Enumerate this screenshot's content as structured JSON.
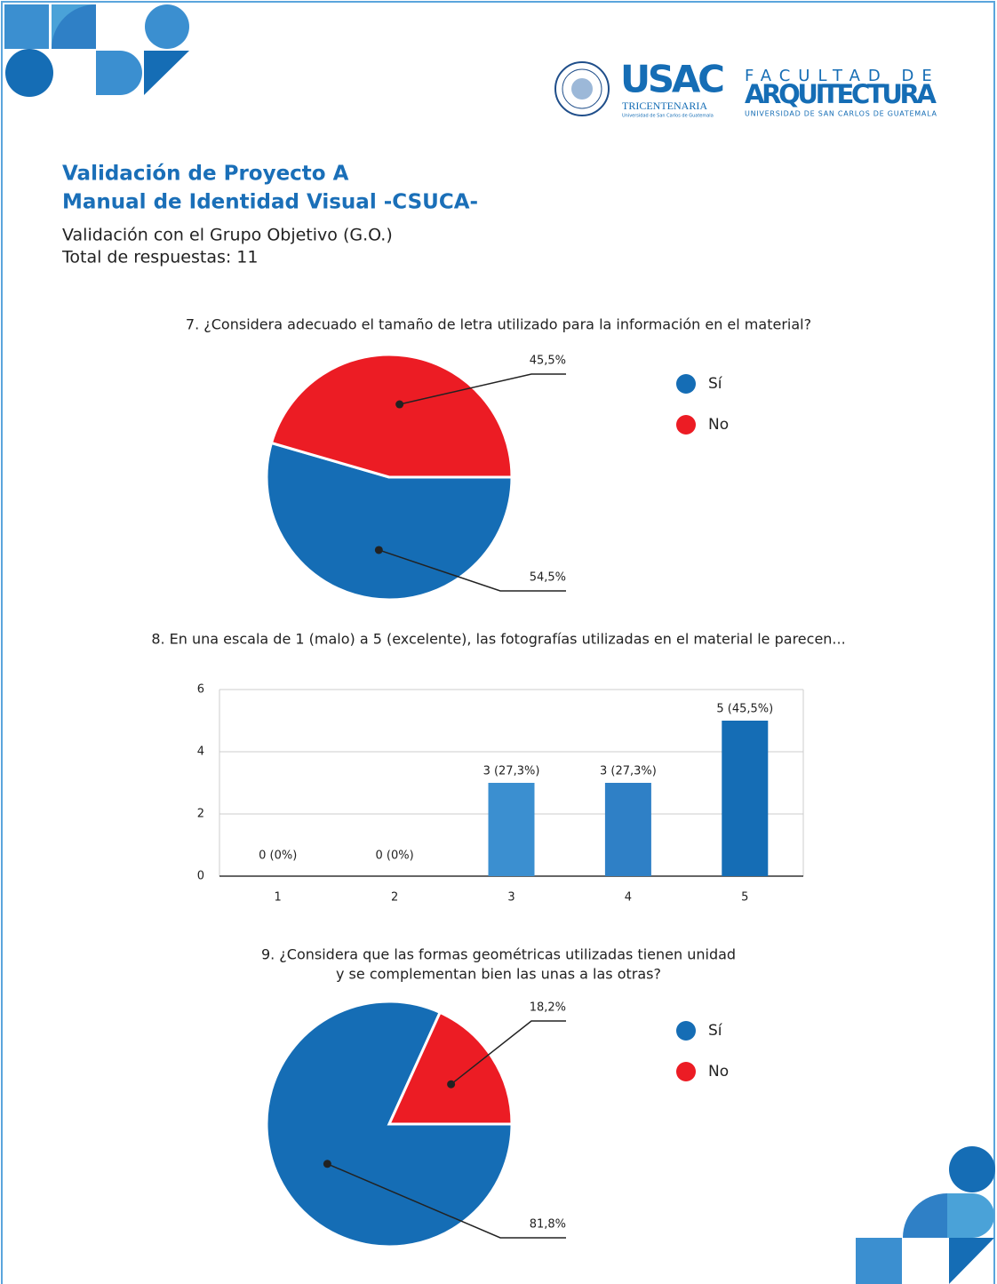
{
  "header": {
    "logos": {
      "usac": "USAC",
      "tricentenaria": "TRICENTENARIA",
      "usac_sub": "Universidad de San Carlos de Guatemala",
      "faculty_top": "FACULTAD DE",
      "faculty_main": "ARQUITECTURA",
      "faculty_sub": "UNIVERSIDAD DE SAN CARLOS DE GUATEMALA"
    },
    "title_lines": [
      "Validación de Proyecto A",
      "Manual de Identidad Visual -CSUCA-"
    ],
    "subtitle": "Validación con el Grupo Objetivo (G.O.)",
    "responses": "Total de respuestas: 11"
  },
  "chart_data": [
    {
      "type": "pie",
      "title": [
        "7. ¿Considera adecuado el tamaño de letra utilizado para la información en el material?"
      ],
      "categories": [
        "Sí",
        "No"
      ],
      "values": [
        54.5,
        45.5
      ],
      "value_labels": [
        "54,5%",
        "45,5%"
      ],
      "colors": [
        "#156db5",
        "#ec1c24"
      ]
    },
    {
      "type": "bar",
      "title": [
        "8. En una escala de 1 (malo) a 5 (excelente), las fotografías utilizadas en el material le parecen..."
      ],
      "categories": [
        "1",
        "2",
        "3",
        "4",
        "5"
      ],
      "values": [
        0,
        0,
        3,
        3,
        5
      ],
      "value_labels": [
        "0 (0%)",
        "0 (0%)",
        "3 (27,3%)",
        "3 (27,3%)",
        "5 (45,5%)"
      ],
      "colors": [
        "#3b8fd0",
        "#3b8fd0",
        "#3b8fd0",
        "#2f80c6",
        "#156db5"
      ],
      "ylim": [
        0,
        6
      ],
      "yticks": [
        0,
        2,
        4,
        6
      ],
      "grid": true
    },
    {
      "type": "pie",
      "title": [
        "9. ¿Considera que las formas geométricas utilizadas tienen unidad",
        "y se complementan bien las unas a las otras?"
      ],
      "categories": [
        "Sí",
        "No"
      ],
      "values": [
        81.8,
        18.2
      ],
      "value_labels": [
        "81,8%",
        "18,2%"
      ],
      "colors": [
        "#156db5",
        "#ec1c24"
      ]
    }
  ]
}
